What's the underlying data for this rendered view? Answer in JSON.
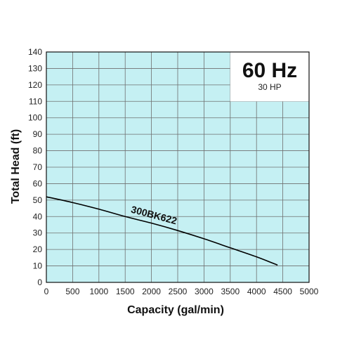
{
  "chart_data": {
    "type": "line",
    "annotation_main": "60 Hz",
    "annotation_sub": "30 HP",
    "xlabel": "Capacity (gal/min)",
    "ylabel": "Total Head (ft)",
    "xlim": [
      0,
      5000
    ],
    "ylim": [
      0,
      140
    ],
    "xticks": [
      0,
      500,
      1000,
      1500,
      2000,
      2500,
      3000,
      3500,
      4000,
      4500,
      5000
    ],
    "yticks": [
      0,
      10,
      20,
      30,
      40,
      50,
      60,
      70,
      80,
      90,
      100,
      110,
      120,
      130,
      140
    ],
    "grid": true,
    "colors": {
      "plot_background": "#c5f0f3",
      "grid": "#6f6f6f",
      "curve": "#000000"
    },
    "series": [
      {
        "name": "300BK622",
        "x": [
          0,
          500,
          1000,
          1500,
          2000,
          2500,
          3000,
          3500,
          4000,
          4400
        ],
        "y": [
          52,
          48.5,
          44.5,
          40,
          36,
          31.5,
          26.5,
          21,
          15.5,
          10.5
        ]
      }
    ]
  }
}
